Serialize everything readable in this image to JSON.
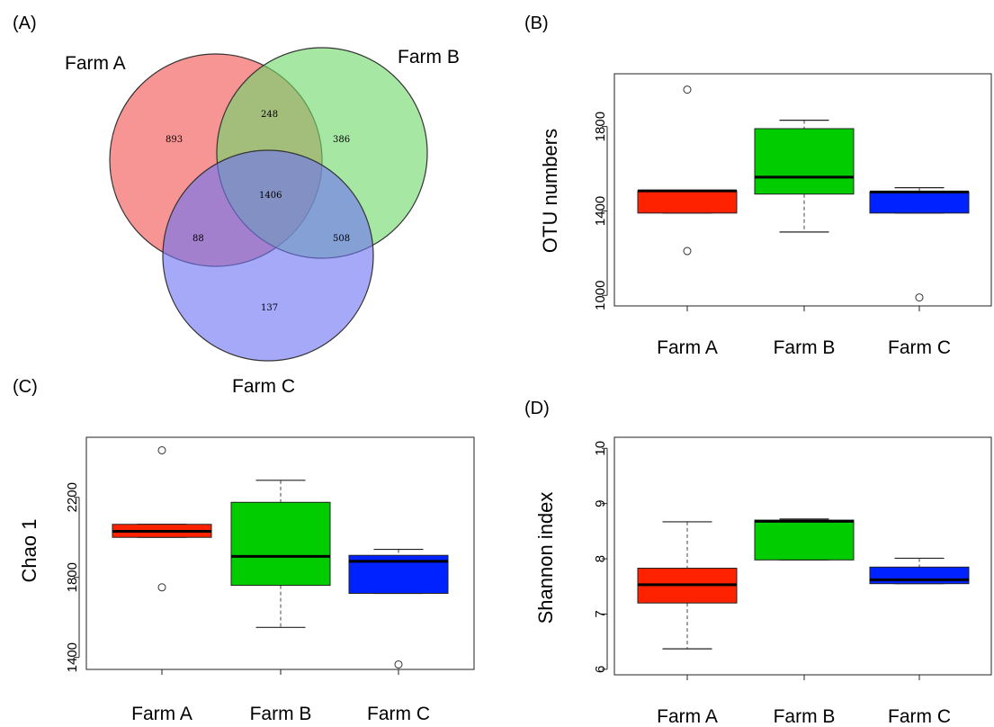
{
  "chart_data": [
    {
      "panel": "(A)",
      "type": "venn",
      "sets": [
        "Farm A",
        "Farm B",
        "Farm C"
      ],
      "colors": [
        "#f46b6b",
        "#6fd86a",
        "#6f75f2"
      ],
      "regions": {
        "A_only": "893",
        "B_only": "386",
        "C_only": "137",
        "AB_only": "248",
        "AC_only": "88",
        "BC_only": "508",
        "ABC": "1406"
      }
    },
    {
      "panel": "(B)",
      "type": "boxplot",
      "ylabel": "OTU numbers",
      "categories": [
        "Farm A",
        "Farm B",
        "Farm C"
      ],
      "colors": [
        "#ff2200",
        "#00cc00",
        "#0022ff"
      ],
      "ylim": [
        950,
        2050
      ],
      "yticks": [
        1000,
        1400,
        1800
      ],
      "boxes": [
        {
          "min": 1390,
          "q1": 1390,
          "median": 1495,
          "q3": 1495,
          "max": 1495,
          "outliers": [
            1975,
            1210
          ]
        },
        {
          "min": 1300,
          "q1": 1480,
          "median": 1560,
          "q3": 1790,
          "max": 1830,
          "outliers": []
        },
        {
          "min": 1390,
          "q1": 1390,
          "median": 1490,
          "q3": 1490,
          "max": 1510,
          "outliers": [
            990
          ]
        }
      ]
    },
    {
      "panel": "(C)",
      "type": "boxplot",
      "ylabel": "Chao 1",
      "categories": [
        "Farm A",
        "Farm B",
        "Farm C"
      ],
      "colors": [
        "#ff2200",
        "#00cc00",
        "#0022ff"
      ],
      "ylim": [
        1340,
        2500
      ],
      "yticks": [
        1400,
        1800,
        2200
      ],
      "boxes": [
        {
          "min": 2000,
          "q1": 2000,
          "median": 2030,
          "q3": 2065,
          "max": 2065,
          "outliers": [
            2435,
            1750
          ]
        },
        {
          "min": 1550,
          "q1": 1760,
          "median": 1905,
          "q3": 2175,
          "max": 2285,
          "outliers": []
        },
        {
          "min": 1720,
          "q1": 1720,
          "median": 1880,
          "q3": 1910,
          "max": 1940,
          "outliers": [
            1365
          ]
        }
      ]
    },
    {
      "panel": "(D)",
      "type": "boxplot",
      "ylabel": "Shannon index",
      "categories": [
        "Farm A",
        "Farm B",
        "Farm C"
      ],
      "colors": [
        "#ff2200",
        "#00cc00",
        "#0022ff"
      ],
      "ylim": [
        5.9,
        10.2
      ],
      "yticks": [
        6,
        7,
        8,
        9,
        10
      ],
      "boxes": [
        {
          "min": 6.37,
          "q1": 7.2,
          "median": 7.53,
          "q3": 7.83,
          "max": 8.67,
          "outliers": []
        },
        {
          "min": 7.98,
          "q1": 7.98,
          "median": 8.68,
          "q3": 8.7,
          "max": 8.72,
          "outliers": []
        },
        {
          "min": 7.55,
          "q1": 7.55,
          "median": 7.62,
          "q3": 7.85,
          "max": 8.01,
          "outliers": []
        }
      ]
    }
  ]
}
